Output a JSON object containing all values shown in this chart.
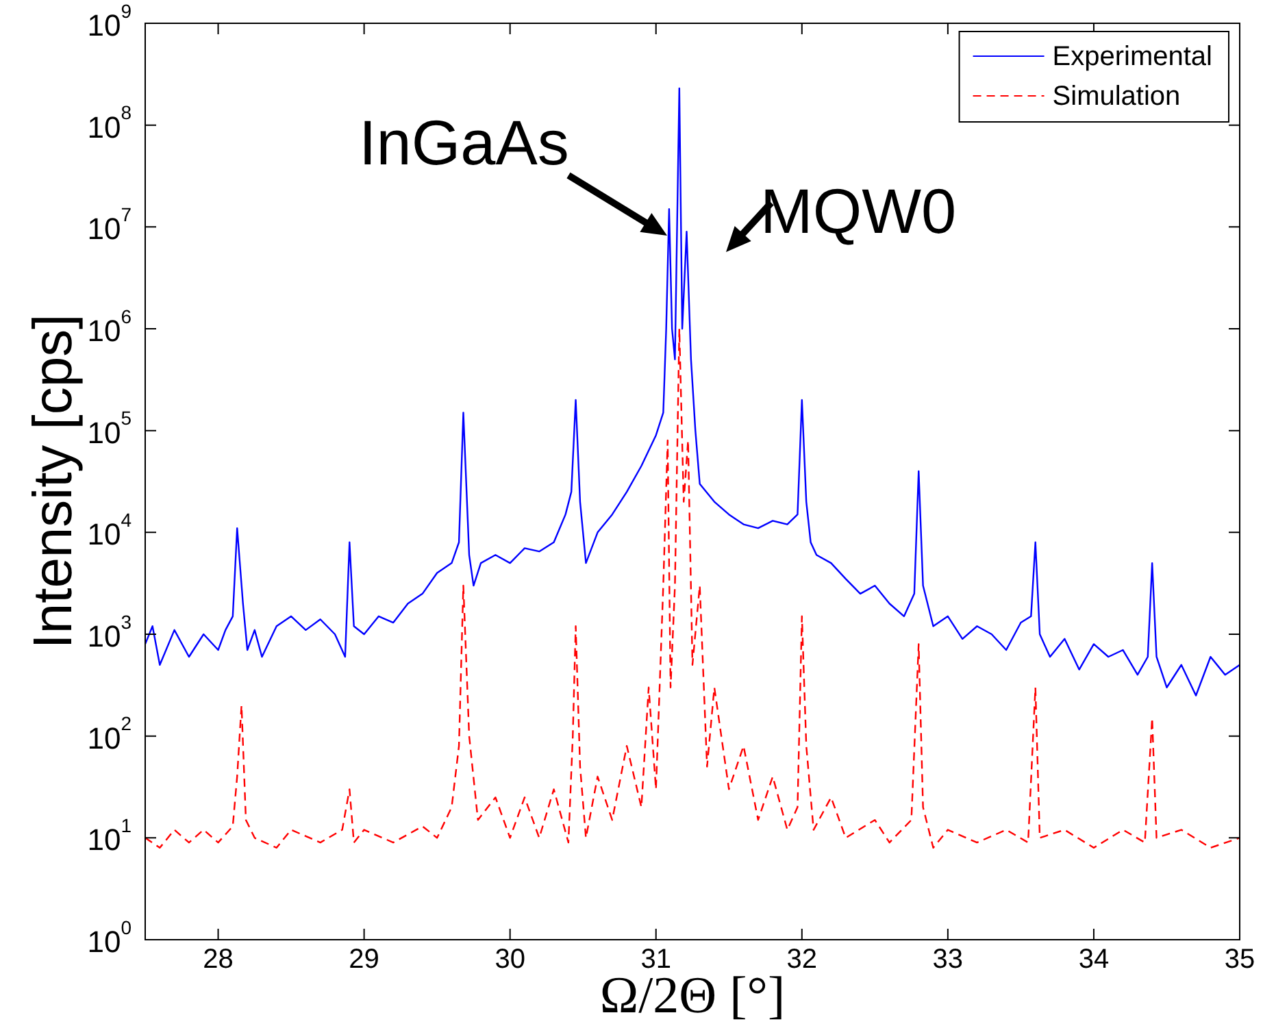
{
  "chart_data": {
    "type": "line",
    "xlabel": "Ω/2Θ [°]",
    "ylabel": "Intensity [cps]",
    "xlim": [
      27.5,
      35
    ],
    "xticks": [
      28,
      29,
      30,
      31,
      32,
      33,
      34,
      35
    ],
    "ylim": [
      1,
      1000000000
    ],
    "yticks": [
      {
        "value": 1,
        "label": "10$^{0}$"
      },
      {
        "value": 10,
        "label": "10$^{1}$"
      },
      {
        "value": 100,
        "label": "10$^{2}$"
      },
      {
        "value": 1000,
        "label": "10$^{3}$"
      },
      {
        "value": 10000,
        "label": "10$^{4}$"
      },
      {
        "value": 100000,
        "label": "10$^{5}$"
      },
      {
        "value": 1000000,
        "label": "10$^{6}$"
      },
      {
        "value": 10000000,
        "label": "10$^{7}$"
      },
      {
        "value": 100000000,
        "label": "10$^{8}$"
      },
      {
        "value": 1000000000,
        "label": "10$^{9}$"
      }
    ],
    "log": "y",
    "grid": false,
    "legend": "top right",
    "marker": "none",
    "annotations": [
      "InGaAs",
      "MQW0"
    ],
    "series": [
      {
        "name": "Experimental",
        "color": "#0000ff",
        "line_style": "solid",
        "x": [
          27.5,
          27.55,
          27.6,
          27.7,
          27.8,
          27.9,
          28.0,
          28.05,
          28.1,
          28.13,
          28.17,
          28.2,
          28.25,
          28.3,
          28.4,
          28.5,
          28.6,
          28.7,
          28.8,
          28.87,
          28.9,
          28.93,
          29.0,
          29.1,
          29.2,
          29.3,
          29.4,
          29.5,
          29.6,
          29.65,
          29.68,
          29.72,
          29.75,
          29.8,
          29.9,
          30.0,
          30.1,
          30.2,
          30.3,
          30.38,
          30.42,
          30.45,
          30.48,
          30.52,
          30.6,
          30.7,
          30.8,
          30.9,
          31.0,
          31.05,
          31.07,
          31.09,
          31.11,
          31.13,
          31.16,
          31.18,
          31.21,
          31.24,
          31.27,
          31.3,
          31.4,
          31.5,
          31.6,
          31.7,
          31.8,
          31.9,
          31.97,
          32.0,
          32.03,
          32.06,
          32.1,
          32.2,
          32.3,
          32.4,
          32.5,
          32.6,
          32.7,
          32.77,
          32.8,
          32.83,
          32.9,
          33.0,
          33.1,
          33.2,
          33.3,
          33.4,
          33.5,
          33.57,
          33.6,
          33.63,
          33.7,
          33.8,
          33.9,
          34.0,
          34.1,
          34.2,
          34.3,
          34.37,
          34.4,
          34.43,
          34.5,
          34.6,
          34.7,
          34.8,
          34.9,
          35.0
        ],
        "values": [
          800,
          1200,
          500,
          1100,
          600,
          1000,
          700,
          1100,
          1500,
          11000,
          2000,
          700,
          1100,
          600,
          1200,
          1500,
          1100,
          1400,
          1000,
          600,
          8000,
          1200,
          1000,
          1500,
          1300,
          2000,
          2500,
          4000,
          5000,
          8000,
          150000,
          6000,
          3000,
          5000,
          6000,
          5000,
          7000,
          6500,
          8000,
          15000,
          25000,
          200000,
          20000,
          5000,
          10000,
          15000,
          25000,
          45000,
          90000,
          150000,
          1000000,
          15000000,
          1000000,
          500000,
          230000000,
          1000000,
          9000000,
          500000,
          100000,
          30000,
          20000,
          15000,
          12000,
          11000,
          13000,
          12000,
          15000,
          200000,
          20000,
          8000,
          6000,
          5000,
          3500,
          2500,
          3000,
          2000,
          1500,
          2500,
          40000,
          3000,
          1200,
          1500,
          900,
          1200,
          1000,
          700,
          1300,
          1500,
          8000,
          1000,
          600,
          900,
          450,
          800,
          600,
          700,
          400,
          600,
          5000,
          600,
          300,
          500,
          250,
          600,
          400,
          500
        ]
      },
      {
        "name": "Simulation",
        "color": "#ff0000",
        "line_style": "dashed",
        "x": [
          27.5,
          27.6,
          27.7,
          27.8,
          27.9,
          28.0,
          28.1,
          28.13,
          28.16,
          28.19,
          28.25,
          28.4,
          28.5,
          28.7,
          28.85,
          28.9,
          28.93,
          29.0,
          29.2,
          29.4,
          29.5,
          29.6,
          29.65,
          29.68,
          29.72,
          29.78,
          29.9,
          30.0,
          30.1,
          30.2,
          30.3,
          30.4,
          30.43,
          30.45,
          30.48,
          30.52,
          30.6,
          30.7,
          30.8,
          30.9,
          30.95,
          31.0,
          31.05,
          31.08,
          31.1,
          31.13,
          31.16,
          31.19,
          31.22,
          31.25,
          31.3,
          31.35,
          31.4,
          31.5,
          31.6,
          31.7,
          31.8,
          31.9,
          31.97,
          32.0,
          32.03,
          32.08,
          32.2,
          32.3,
          32.5,
          32.6,
          32.75,
          32.8,
          32.83,
          32.9,
          33.0,
          33.2,
          33.4,
          33.55,
          33.6,
          33.63,
          33.8,
          34.0,
          34.2,
          34.35,
          34.4,
          34.43,
          34.6,
          34.8,
          35.0
        ],
        "values": [
          10,
          8,
          12,
          9,
          12,
          9,
          13,
          40,
          200,
          15,
          10,
          8,
          12,
          9,
          12,
          30,
          9,
          12,
          9,
          13,
          10,
          20,
          80,
          3000,
          100,
          15,
          25,
          10,
          25,
          10,
          30,
          9,
          100,
          1200,
          50,
          10,
          40,
          15,
          80,
          20,
          300,
          30,
          3000,
          80000,
          300,
          3000,
          1000000,
          20000,
          80000,
          500,
          3000,
          50,
          300,
          30,
          80,
          15,
          40,
          12,
          20,
          1500,
          80,
          12,
          25,
          10,
          15,
          9,
          15,
          800,
          20,
          8,
          12,
          9,
          12,
          9,
          300,
          10,
          12,
          8,
          12,
          9,
          150,
          10,
          12,
          8,
          10
        ]
      }
    ]
  }
}
